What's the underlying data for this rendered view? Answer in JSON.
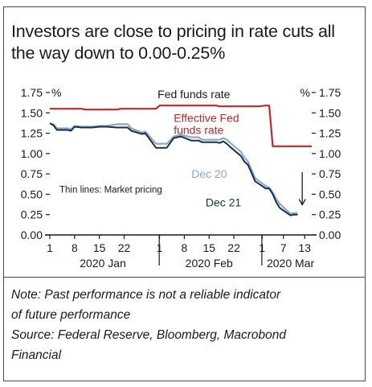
{
  "title": "Investors are close to pricing in rate cuts all the way down to 0.00-0.25%",
  "note_lines": [
    "Note: Past performance is not a reliable indicator",
    "of future performance",
    "Source: Federal Reserve, Bloomberg, Macrobond",
    "Financial"
  ],
  "colors": {
    "fed_funds": "#c0282c",
    "effective": "#c0282c",
    "dec20": "#8fa9c1",
    "dec21": "#13304f",
    "axis": "#1a1a1a"
  },
  "chart_data": {
    "type": "line",
    "ylabel_left": "%",
    "ylabel_right": "%",
    "ylim": [
      0,
      1.75
    ],
    "yticks": [
      0,
      0.25,
      0.5,
      0.75,
      1.0,
      1.25,
      1.5,
      1.75
    ],
    "ytick_labels": [
      "0.00",
      "0.25",
      "0.50",
      "0.75",
      "1.00",
      "1.25",
      "1.50",
      "1.75"
    ],
    "xlim": [
      "2020-01-01",
      "2020-03-15"
    ],
    "xticks": [
      {
        "date": "2020-01-01",
        "label": "1"
      },
      {
        "date": "2020-01-08",
        "label": "8"
      },
      {
        "date": "2020-01-15",
        "label": "15"
      },
      {
        "date": "2020-01-22",
        "label": "22"
      },
      {
        "date": "2020-02-01",
        "label": "1"
      },
      {
        "date": "2020-02-08",
        "label": "8"
      },
      {
        "date": "2020-02-15",
        "label": "15"
      },
      {
        "date": "2020-02-22",
        "label": "22"
      },
      {
        "date": "2020-03-01",
        "label": "1"
      },
      {
        "date": "2020-03-07",
        "label": "7"
      },
      {
        "date": "2020-03-13",
        "label": "13"
      }
    ],
    "month_labels": [
      {
        "date": "2020-01-16",
        "label": "2020 Jan"
      },
      {
        "date": "2020-02-15",
        "label": "2020 Feb"
      },
      {
        "date": "2020-03-09",
        "label": "2020 Mar"
      }
    ],
    "series": [
      {
        "name": "Fed funds rate",
        "key": "fed_funds",
        "width": 2.2,
        "points": [
          [
            "2020-01-01",
            1.55
          ],
          [
            "2020-01-10",
            1.55
          ],
          [
            "2020-01-11",
            1.54
          ],
          [
            "2020-01-20",
            1.54
          ],
          [
            "2020-01-21",
            1.55
          ],
          [
            "2020-01-31",
            1.55
          ],
          [
            "2020-02-01",
            1.59
          ],
          [
            "2020-02-17",
            1.59
          ],
          [
            "2020-02-18",
            1.58
          ],
          [
            "2020-02-29",
            1.58
          ],
          [
            "2020-03-02",
            1.59
          ],
          [
            "2020-03-03",
            1.59
          ],
          [
            "2020-03-04",
            1.09
          ],
          [
            "2020-03-15",
            1.09
          ]
        ]
      },
      {
        "name": "Dec 20",
        "key": "dec20",
        "width": 2.2,
        "points": [
          [
            "2020-01-01",
            1.37
          ],
          [
            "2020-01-02",
            1.36
          ],
          [
            "2020-01-03",
            1.31
          ],
          [
            "2020-01-06",
            1.31
          ],
          [
            "2020-01-07",
            1.3
          ],
          [
            "2020-01-08",
            1.34
          ],
          [
            "2020-01-10",
            1.33
          ],
          [
            "2020-01-13",
            1.33
          ],
          [
            "2020-01-15",
            1.34
          ],
          [
            "2020-01-17",
            1.34
          ],
          [
            "2020-01-20",
            1.36
          ],
          [
            "2020-01-23",
            1.36
          ],
          [
            "2020-01-24",
            1.31
          ],
          [
            "2020-01-27",
            1.26
          ],
          [
            "2020-01-28",
            1.27
          ],
          [
            "2020-01-30",
            1.17
          ],
          [
            "2020-01-31",
            1.12
          ],
          [
            "2020-02-03",
            1.12
          ],
          [
            "2020-02-04",
            1.16
          ],
          [
            "2020-02-05",
            1.21
          ],
          [
            "2020-02-07",
            1.23
          ],
          [
            "2020-02-10",
            1.2
          ],
          [
            "2020-02-12",
            1.2
          ],
          [
            "2020-02-13",
            1.17
          ],
          [
            "2020-02-14",
            1.17
          ],
          [
            "2020-02-17",
            1.17
          ],
          [
            "2020-02-18",
            1.17
          ],
          [
            "2020-02-19",
            1.19
          ],
          [
            "2020-02-20",
            1.17
          ],
          [
            "2020-02-21",
            1.13
          ],
          [
            "2020-02-24",
            1.02
          ],
          [
            "2020-02-25",
            0.95
          ],
          [
            "2020-02-26",
            0.9
          ],
          [
            "2020-02-27",
            0.8
          ],
          [
            "2020-02-28",
            0.7
          ],
          [
            "2020-03-02",
            0.6
          ],
          [
            "2020-03-03",
            0.58
          ],
          [
            "2020-03-04",
            0.52
          ],
          [
            "2020-03-05",
            0.44
          ],
          [
            "2020-03-06",
            0.38
          ],
          [
            "2020-03-09",
            0.26
          ],
          [
            "2020-03-10",
            0.27
          ],
          [
            "2020-03-11",
            0.27
          ]
        ]
      },
      {
        "name": "Dec 21",
        "key": "dec21",
        "width": 2.0,
        "points": [
          [
            "2020-01-01",
            1.37
          ],
          [
            "2020-01-02",
            1.35
          ],
          [
            "2020-01-03",
            1.29
          ],
          [
            "2020-01-06",
            1.29
          ],
          [
            "2020-01-07",
            1.28
          ],
          [
            "2020-01-08",
            1.33
          ],
          [
            "2020-01-10",
            1.32
          ],
          [
            "2020-01-13",
            1.32
          ],
          [
            "2020-01-15",
            1.33
          ],
          [
            "2020-01-17",
            1.33
          ],
          [
            "2020-01-20",
            1.32
          ],
          [
            "2020-01-23",
            1.32
          ],
          [
            "2020-01-24",
            1.28
          ],
          [
            "2020-01-27",
            1.24
          ],
          [
            "2020-01-28",
            1.25
          ],
          [
            "2020-01-30",
            1.13
          ],
          [
            "2020-01-31",
            1.07
          ],
          [
            "2020-02-03",
            1.07
          ],
          [
            "2020-02-04",
            1.13
          ],
          [
            "2020-02-05",
            1.19
          ],
          [
            "2020-02-07",
            1.21
          ],
          [
            "2020-02-10",
            1.16
          ],
          [
            "2020-02-12",
            1.16
          ],
          [
            "2020-02-13",
            1.14
          ],
          [
            "2020-02-14",
            1.14
          ],
          [
            "2020-02-17",
            1.14
          ],
          [
            "2020-02-18",
            1.13
          ],
          [
            "2020-02-19",
            1.15
          ],
          [
            "2020-02-20",
            1.12
          ],
          [
            "2020-02-21",
            1.08
          ],
          [
            "2020-02-24",
            0.97
          ],
          [
            "2020-02-25",
            0.9
          ],
          [
            "2020-02-26",
            0.86
          ],
          [
            "2020-02-27",
            0.76
          ],
          [
            "2020-02-28",
            0.66
          ],
          [
            "2020-03-02",
            0.57
          ],
          [
            "2020-03-03",
            0.57
          ],
          [
            "2020-03-04",
            0.5
          ],
          [
            "2020-03-05",
            0.4
          ],
          [
            "2020-03-06",
            0.33
          ],
          [
            "2020-03-09",
            0.24
          ],
          [
            "2020-03-10",
            0.25
          ],
          [
            "2020-03-11",
            0.25
          ]
        ]
      }
    ],
    "annotations": {
      "fed_funds_label": "Fed funds rate",
      "effective_label_1": "Effective Fed",
      "effective_label_2": "funds rate",
      "dec20_label": "Dec 20",
      "dec21_label": "Dec 21",
      "thin_lines_label": "Thin lines: Market pricing"
    },
    "arrow": {
      "date": "2020-03-13",
      "from": 0.77,
      "to": 0.37
    }
  }
}
